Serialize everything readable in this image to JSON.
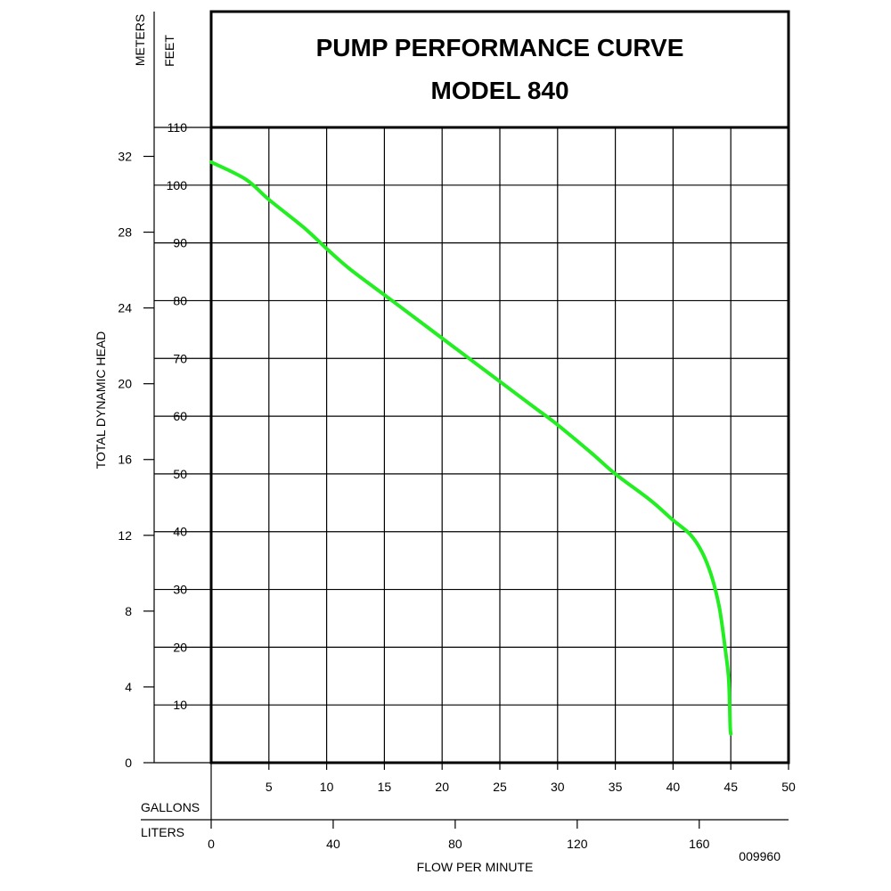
{
  "chart_data": {
    "type": "line",
    "title": "PUMP PERFORMANCE CURVE",
    "subtitle": "MODEL 840",
    "xlabel": "FLOW PER MINUTE",
    "ylabel": "TOTAL DYNAMIC HEAD",
    "x_units": {
      "primary": "GALLONS",
      "secondary": "LITERS"
    },
    "y_units": {
      "primary": "FEET",
      "secondary": "METERS"
    },
    "xlim": [
      0,
      50
    ],
    "ylim": [
      0,
      110
    ],
    "grid": true,
    "gallons_ticks": [
      5,
      10,
      15,
      20,
      25,
      30,
      35,
      40,
      45,
      50
    ],
    "liters_ticks": [
      0,
      40,
      80,
      120,
      160
    ],
    "feet_ticks": [
      10,
      20,
      30,
      40,
      50,
      60,
      70,
      80,
      90,
      100,
      110
    ],
    "meters_ticks": [
      0,
      4,
      8,
      12,
      16,
      20,
      24,
      28,
      32
    ],
    "series": [
      {
        "name": "MODEL 840",
        "color": "#22ee22",
        "x": [
          0,
          3,
          5,
          8,
          10,
          12,
          15,
          18,
          20,
          23,
          25,
          28,
          30,
          33,
          35,
          38,
          40,
          41.5,
          42.5,
          43.3,
          44,
          44.5,
          44.8,
          44.9,
          44.95,
          45
        ],
        "y": [
          104,
          101,
          97.5,
          92.7,
          89,
          85.5,
          81,
          76.5,
          73.5,
          69,
          66,
          61.5,
          58.5,
          53.5,
          50,
          45.5,
          42,
          39.5,
          36.5,
          32.5,
          27,
          20,
          15,
          10,
          6,
          5
        ]
      }
    ]
  },
  "footer": {
    "code": "009960"
  }
}
